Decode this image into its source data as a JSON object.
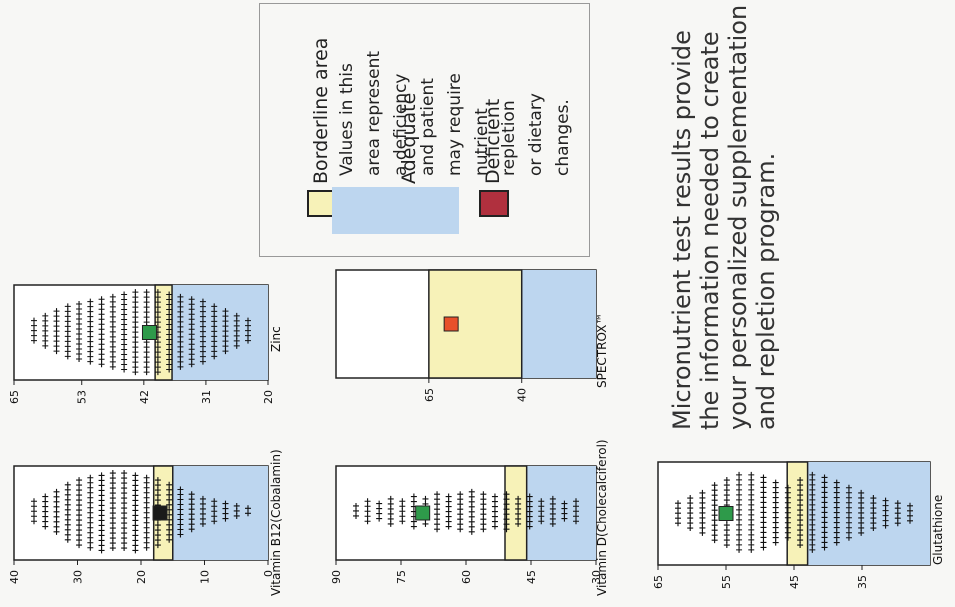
{
  "legend": {
    "borderline_label": "Borderline area",
    "adequate_label": "Adequate",
    "deficient_label": "Deficient",
    "note_lines": [
      "Values in this",
      "area represent",
      "a deficiency",
      "and patient",
      "may require",
      "nutrient",
      "repletion",
      "or dietary",
      "changes."
    ],
    "colors": {
      "borderline": "#f7f2b8",
      "adequate": "#2e9a4a",
      "deficient": "#b0303e",
      "deficiency_area": "#bdd6ef"
    }
  },
  "description_lines": [
    "Micronutrient test results provide",
    "the information needed to create",
    "your personalized supplementation",
    "and repletion program."
  ],
  "chart_data": [
    {
      "type": "scatter",
      "title": "Vitamin B12(Cobalamin)",
      "axis_range": [
        40,
        0
      ],
      "tick_labels": [
        "40",
        "30",
        "20",
        "10",
        "0"
      ],
      "tick_values": [
        40,
        30,
        20,
        10,
        0
      ],
      "borderline_range": [
        15,
        18
      ],
      "deficiency_range": [
        0,
        15
      ],
      "patient_value": 17,
      "patient_marker": "#1a1a1a"
    },
    {
      "type": "scatter",
      "title": "Zinc",
      "axis_range": [
        65,
        20
      ],
      "tick_labels": [
        "65",
        "53",
        "42",
        "31",
        "20"
      ],
      "tick_values": [
        65,
        53,
        42,
        31,
        20
      ],
      "borderline_range": [
        37,
        40
      ],
      "deficiency_range": [
        20,
        37
      ],
      "patient_value": 41,
      "patient_marker": "#2e9a4a"
    },
    {
      "type": "scatter",
      "title": "Vitamin D(Cholecalciferol)",
      "axis_range": [
        90,
        30
      ],
      "tick_labels": [
        "90",
        "75",
        "60",
        "45",
        "30"
      ],
      "tick_values": [
        90,
        75,
        60,
        45,
        30
      ],
      "borderline_range": [
        46,
        51
      ],
      "deficiency_range": [
        30,
        46
      ],
      "patient_value": 70,
      "patient_marker": "#2e9a4a"
    },
    {
      "type": "scatter",
      "title": "SPECTROX™",
      "axis_range": [
        90,
        20
      ],
      "tick_labels": [
        "65",
        "40"
      ],
      "tick_values": [
        65,
        40
      ],
      "borderline_range": [
        40,
        65
      ],
      "deficiency_range": [
        20,
        40
      ],
      "patient_value": 59,
      "patient_marker": "#e8502a"
    },
    {
      "type": "scatter",
      "title": "Glutathione",
      "axis_range": [
        65,
        25
      ],
      "tick_labels": [
        "65",
        "55",
        "45",
        "35"
      ],
      "tick_values": [
        65,
        55,
        45,
        35
      ],
      "borderline_range": [
        43,
        46
      ],
      "deficiency_range": [
        25,
        43
      ],
      "patient_value": 55,
      "patient_marker": "#2e9a4a"
    }
  ]
}
